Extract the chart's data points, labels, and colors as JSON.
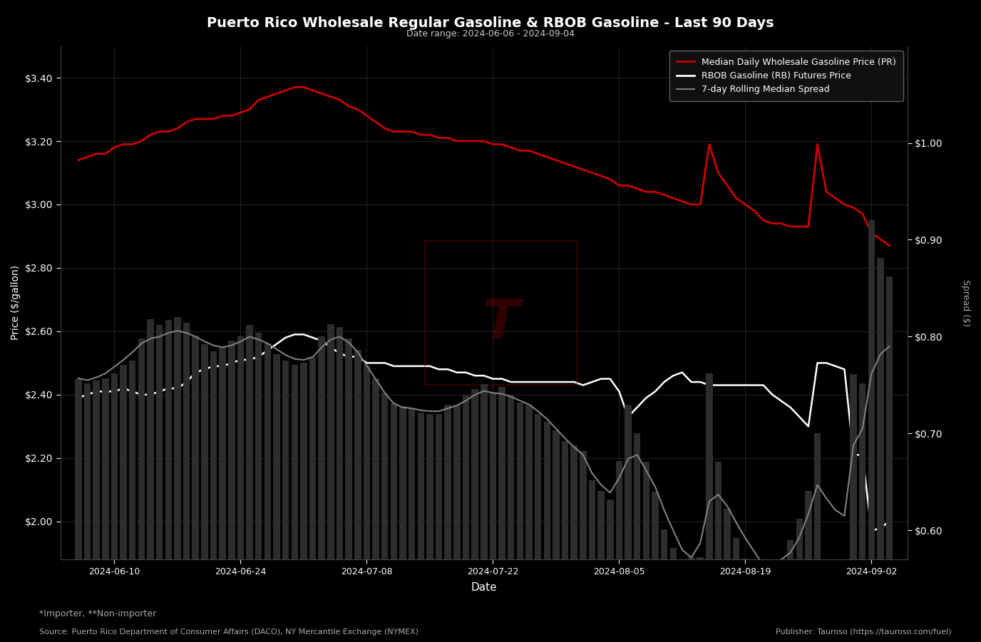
{
  "title": "Puerto Rico Wholesale Regular Gasoline & RBOB Gasoline - Last 90 Days",
  "subtitle": "Date range: 2024-06-06 - 2024-09-04",
  "xlabel": "Date",
  "ylabel_left": "Price ($/gallon)",
  "ylabel_right": "Spread ($)",
  "background_color": "#000000",
  "grid_color": "#2a2a2a",
  "text_color": "#ffffff",
  "legend_labels": [
    "Median Daily Wholesale Gasoline Price (PR)",
    "RBOB Gasoline (RB) Futures Price",
    "7-day Rolling Median Spread"
  ],
  "source_text": "Source: Puerto Rico Department of Consumer Affairs (DACO), NY Mercantile Exchange (NYMEX)",
  "publisher_text": "Publisher: Tauroso (https://tauroso.com/fuel)",
  "footnote_text": "*Importer, **Non-importer",
  "ylim_left": [
    1.88,
    3.5
  ],
  "ylim_right": [
    0.57,
    1.1
  ],
  "yticks_left": [
    2.0,
    2.2,
    2.4,
    2.6,
    2.8,
    3.0,
    3.2,
    3.4
  ],
  "yticks_right": [
    0.6,
    0.7,
    0.8,
    0.9,
    1.0
  ],
  "dates": [
    "2024-06-06",
    "2024-06-07",
    "2024-06-08",
    "2024-06-09",
    "2024-06-10",
    "2024-06-11",
    "2024-06-12",
    "2024-06-13",
    "2024-06-14",
    "2024-06-15",
    "2024-06-16",
    "2024-06-17",
    "2024-06-18",
    "2024-06-19",
    "2024-06-20",
    "2024-06-21",
    "2024-06-22",
    "2024-06-23",
    "2024-06-24",
    "2024-06-25",
    "2024-06-26",
    "2024-06-27",
    "2024-06-28",
    "2024-06-29",
    "2024-06-30",
    "2024-07-01",
    "2024-07-02",
    "2024-07-03",
    "2024-07-04",
    "2024-07-05",
    "2024-07-06",
    "2024-07-07",
    "2024-07-08",
    "2024-07-09",
    "2024-07-10",
    "2024-07-11",
    "2024-07-12",
    "2024-07-13",
    "2024-07-14",
    "2024-07-15",
    "2024-07-16",
    "2024-07-17",
    "2024-07-18",
    "2024-07-19",
    "2024-07-20",
    "2024-07-21",
    "2024-07-22",
    "2024-07-23",
    "2024-07-24",
    "2024-07-25",
    "2024-07-26",
    "2024-07-27",
    "2024-07-28",
    "2024-07-29",
    "2024-07-30",
    "2024-07-31",
    "2024-08-01",
    "2024-08-02",
    "2024-08-03",
    "2024-08-04",
    "2024-08-05",
    "2024-08-06",
    "2024-08-07",
    "2024-08-08",
    "2024-08-09",
    "2024-08-10",
    "2024-08-11",
    "2024-08-12",
    "2024-08-13",
    "2024-08-14",
    "2024-08-15",
    "2024-08-16",
    "2024-08-17",
    "2024-08-18",
    "2024-08-19",
    "2024-08-20",
    "2024-08-21",
    "2024-08-22",
    "2024-08-23",
    "2024-08-24",
    "2024-08-25",
    "2024-08-26",
    "2024-08-27",
    "2024-08-28",
    "2024-08-29",
    "2024-08-30",
    "2024-08-31",
    "2024-09-01",
    "2024-09-02",
    "2024-09-03",
    "2024-09-04"
  ],
  "wholesale_price": [
    3.14,
    3.15,
    3.16,
    3.16,
    3.18,
    3.19,
    3.19,
    3.2,
    3.22,
    3.23,
    3.23,
    3.24,
    3.26,
    3.27,
    3.27,
    3.27,
    3.28,
    3.28,
    3.29,
    3.3,
    3.33,
    3.34,
    3.35,
    3.36,
    3.37,
    3.37,
    3.36,
    3.35,
    3.34,
    3.33,
    3.31,
    3.3,
    3.28,
    3.26,
    3.24,
    3.23,
    3.23,
    3.23,
    3.22,
    3.22,
    3.21,
    3.21,
    3.2,
    3.2,
    3.2,
    3.2,
    3.19,
    3.19,
    3.18,
    3.17,
    3.17,
    3.16,
    3.15,
    3.14,
    3.13,
    3.12,
    3.11,
    3.1,
    3.09,
    3.08,
    3.06,
    3.06,
    3.05,
    3.04,
    3.04,
    3.03,
    3.02,
    3.01,
    3.0,
    3.0,
    3.19,
    3.1,
    3.06,
    3.02,
    3.0,
    2.98,
    2.95,
    2.94,
    2.94,
    2.93,
    2.93,
    2.93,
    3.19,
    3.04,
    3.02,
    3.0,
    2.99,
    2.97,
    2.91,
    2.89,
    2.87
  ],
  "rbob_price": [
    2.39,
    2.4,
    2.41,
    2.41,
    2.41,
    2.42,
    2.41,
    2.4,
    2.4,
    2.41,
    2.42,
    2.42,
    2.44,
    2.47,
    2.48,
    2.49,
    2.49,
    2.5,
    2.51,
    2.51,
    2.52,
    2.54,
    2.56,
    2.58,
    2.59,
    2.59,
    2.58,
    2.57,
    2.55,
    2.53,
    2.52,
    2.52,
    2.5,
    2.5,
    2.5,
    2.49,
    2.49,
    2.49,
    2.49,
    2.49,
    2.48,
    2.48,
    2.47,
    2.47,
    2.46,
    2.46,
    2.45,
    2.45,
    2.44,
    2.44,
    2.44,
    2.44,
    2.44,
    2.44,
    2.44,
    2.44,
    2.43,
    2.44,
    2.45,
    2.45,
    2.41,
    2.33,
    2.36,
    2.39,
    2.41,
    2.44,
    2.46,
    2.47,
    2.44,
    2.44,
    2.43,
    2.43,
    2.43,
    2.43,
    2.43,
    2.43,
    2.43,
    2.4,
    2.38,
    2.36,
    2.33,
    2.3,
    2.5,
    2.5,
    2.49,
    2.48,
    2.21,
    2.21,
    1.97,
    1.98,
    2.0
  ],
  "spread_daily": [
    0.756,
    0.752,
    0.755,
    0.757,
    0.762,
    0.771,
    0.775,
    0.798,
    0.818,
    0.812,
    0.817,
    0.82,
    0.814,
    0.801,
    0.792,
    0.785,
    0.789,
    0.796,
    0.8,
    0.812,
    0.804,
    0.793,
    0.782,
    0.775,
    0.771,
    0.773,
    0.779,
    0.8,
    0.813,
    0.81,
    0.798,
    0.786,
    0.77,
    0.757,
    0.742,
    0.731,
    0.728,
    0.726,
    0.722,
    0.72,
    0.72,
    0.73,
    0.73,
    0.74,
    0.746,
    0.751,
    0.742,
    0.748,
    0.74,
    0.732,
    0.73,
    0.72,
    0.712,
    0.703,
    0.692,
    0.688,
    0.682,
    0.652,
    0.641,
    0.632,
    0.672,
    0.73,
    0.7,
    0.671,
    0.64,
    0.601,
    0.582,
    0.552,
    0.572,
    0.572,
    0.762,
    0.671,
    0.622,
    0.592,
    0.571,
    0.553,
    0.534,
    0.552,
    0.562,
    0.59,
    0.612,
    0.641,
    0.7,
    0.552,
    0.532,
    0.521,
    0.761,
    0.752,
    0.92,
    0.881,
    0.862
  ],
  "spread_rolling": [
    0.757,
    0.755,
    0.758,
    0.762,
    0.769,
    0.776,
    0.784,
    0.793,
    0.798,
    0.8,
    0.804,
    0.806,
    0.804,
    0.8,
    0.795,
    0.791,
    0.789,
    0.791,
    0.795,
    0.8,
    0.797,
    0.793,
    0.787,
    0.781,
    0.777,
    0.776,
    0.779,
    0.789,
    0.797,
    0.8,
    0.794,
    0.784,
    0.77,
    0.756,
    0.742,
    0.731,
    0.727,
    0.726,
    0.724,
    0.723,
    0.723,
    0.726,
    0.729,
    0.734,
    0.74,
    0.744,
    0.742,
    0.741,
    0.738,
    0.734,
    0.73,
    0.723,
    0.715,
    0.705,
    0.695,
    0.686,
    0.678,
    0.659,
    0.647,
    0.639,
    0.654,
    0.674,
    0.678,
    0.662,
    0.645,
    0.621,
    0.6,
    0.58,
    0.572,
    0.587,
    0.63,
    0.637,
    0.625,
    0.608,
    0.592,
    0.578,
    0.564,
    0.566,
    0.57,
    0.577,
    0.593,
    0.617,
    0.647,
    0.633,
    0.621,
    0.615,
    0.688,
    0.705,
    0.762,
    0.782,
    0.79
  ]
}
